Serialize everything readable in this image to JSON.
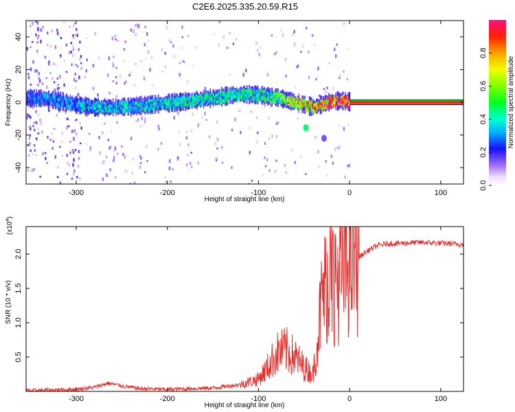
{
  "title": "C2E6.2025.335.20.59.R15",
  "chart_data": [
    {
      "type": "heatmap",
      "xlabel": "Height of straight line (km)",
      "ylabel": "Frequency (Hz)",
      "xlim": [
        -355,
        125
      ],
      "ylim": [
        -50,
        50
      ],
      "x_ticks": [
        -300,
        -200,
        -100,
        0,
        100
      ],
      "y_ticks": [
        -40,
        -20,
        0,
        20,
        40
      ],
      "colorbar": {
        "label": "Normalized spectral amplitude",
        "range": [
          0,
          1
        ],
        "ticks": [
          0.0,
          0.2,
          0.4,
          0.6,
          0.8
        ],
        "tick_labels": [
          "0.0",
          "0.2",
          "0.4",
          "0.6",
          "0.8"
        ]
      },
      "ridge": [
        {
          "x": -340,
          "f": 2.5,
          "amp": 0.3
        },
        {
          "x": -320,
          "f": 1.0,
          "amp": 0.32
        },
        {
          "x": -300,
          "f": -1.5,
          "amp": 0.35
        },
        {
          "x": -280,
          "f": -3.0,
          "amp": 0.38
        },
        {
          "x": -260,
          "f": -3.0,
          "amp": 0.4
        },
        {
          "x": -240,
          "f": -2.5,
          "amp": 0.4
        },
        {
          "x": -220,
          "f": -1.5,
          "amp": 0.4
        },
        {
          "x": -200,
          "f": -0.5,
          "amp": 0.42
        },
        {
          "x": -180,
          "f": 0.5,
          "amp": 0.42
        },
        {
          "x": -160,
          "f": 2.0,
          "amp": 0.43
        },
        {
          "x": -140,
          "f": 3.5,
          "amp": 0.45
        },
        {
          "x": -120,
          "f": 5.0,
          "amp": 0.45
        },
        {
          "x": -100,
          "f": 4.5,
          "amp": 0.47
        },
        {
          "x": -80,
          "f": 3.0,
          "amp": 0.55
        },
        {
          "x": -60,
          "f": 0.0,
          "amp": 0.7
        },
        {
          "x": -40,
          "f": -3.0,
          "amp": 0.8
        },
        {
          "x": -30,
          "f": -1.0,
          "amp": 0.9
        },
        {
          "x": -20,
          "f": 0.5,
          "amp": 0.92
        },
        {
          "x": -10,
          "f": 1.0,
          "amp": 0.95
        },
        {
          "x": 0,
          "f": 0.3,
          "amp": 0.95
        },
        {
          "x": 125,
          "f": 0.0,
          "amp": 0.96
        }
      ],
      "feature_points": [
        {
          "x": -48,
          "f": -15.5,
          "amp": 0.45
        },
        {
          "x": -28,
          "f": -22.0,
          "amp": 0.15
        }
      ]
    },
    {
      "type": "line",
      "xlabel": "Height of straight line (km)",
      "ylabel": "SNR (10 * v/v)",
      "y_scale_label": "(x10",
      "y_scale_exp": "4",
      "y_scale_close": ")",
      "xlim": [
        -355,
        125
      ],
      "ylim": [
        0,
        2.4
      ],
      "x_ticks": [
        -300,
        -200,
        -100,
        0,
        100
      ],
      "y_ticks": [
        0.5,
        1.0,
        1.5,
        2.0
      ],
      "y_tick_labels": [
        "0.5",
        "1.0",
        "1.5",
        "2.0"
      ],
      "series": [
        {
          "color": "#e8322f",
          "x": [
            -355,
            -300,
            -280,
            -265,
            -250,
            -230,
            -200,
            -150,
            -120,
            -100,
            -90,
            -80,
            -70,
            -60,
            -50,
            -40,
            -35,
            -30,
            -25,
            -20,
            -15,
            -10,
            0,
            10,
            20,
            30,
            40,
            60,
            80,
            100,
            125
          ],
          "y": [
            0.01,
            0.03,
            0.06,
            0.12,
            0.08,
            0.04,
            0.03,
            0.05,
            0.1,
            0.18,
            0.35,
            0.55,
            0.6,
            0.5,
            0.35,
            0.25,
            0.8,
            1.4,
            1.6,
            1.7,
            1.6,
            1.7,
            1.85,
            1.95,
            2.05,
            2.12,
            2.15,
            2.16,
            2.17,
            2.16,
            2.14
          ]
        }
      ]
    }
  ]
}
